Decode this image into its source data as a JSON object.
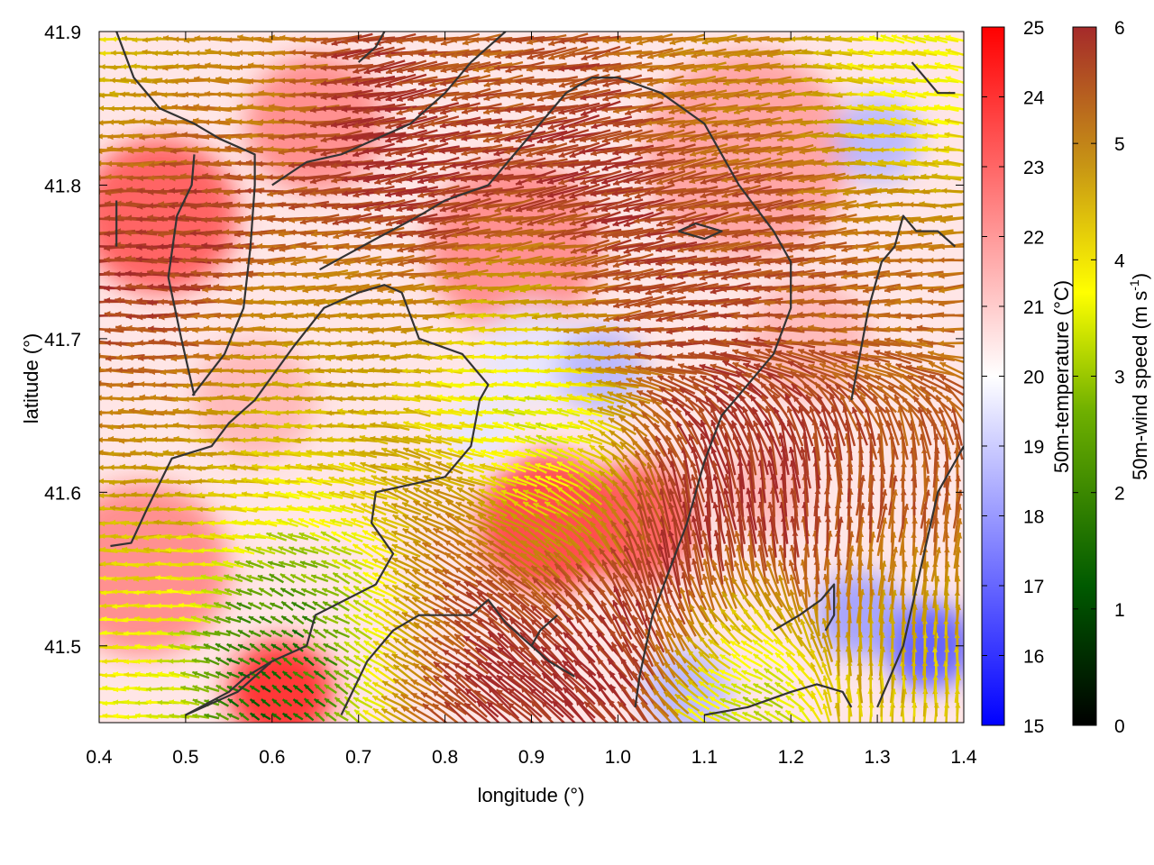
{
  "chart_data": {
    "type": "heatmap",
    "xlabel": "longitude (°)",
    "ylabel": "latitude (°)",
    "xlim": [
      0.4,
      1.4
    ],
    "ylim": [
      41.45,
      41.9
    ],
    "x_ticks": [
      "0.4",
      "0.5",
      "0.6",
      "0.7",
      "0.8",
      "0.9",
      "1.0",
      "1.1",
      "1.2",
      "1.3",
      "1.4"
    ],
    "y_ticks": [
      "41.5",
      "41.6",
      "41.7",
      "41.8",
      "41.9"
    ],
    "x_tick_values": [
      0.4,
      0.5,
      0.6,
      0.7,
      0.8,
      0.9,
      1.0,
      1.1,
      1.2,
      1.3,
      1.4
    ],
    "y_tick_values": [
      41.5,
      41.6,
      41.7,
      41.8,
      41.9
    ],
    "temperature_colorbar": {
      "label": "50m-temperature (°C)",
      "range": [
        15,
        25
      ],
      "ticks": [
        "15",
        "16",
        "17",
        "18",
        "19",
        "20",
        "21",
        "22",
        "23",
        "24",
        "25"
      ],
      "colors": [
        "#0000ff",
        "#ffffff",
        "#ff0000"
      ]
    },
    "wind_colorbar": {
      "label_main": "50m-wind speed (m s",
      "label_sup": "-1",
      "label_end": ")",
      "range": [
        0,
        6
      ],
      "ticks": [
        "0",
        "1",
        "2",
        "3",
        "4",
        "5",
        "6"
      ],
      "colors": [
        "#000000",
        "#006400",
        "#7cb400",
        "#ffff00",
        "#c8a000",
        "#c87814",
        "#a52a2a"
      ]
    },
    "temperature_anomalies": [
      {
        "lon": 0.47,
        "lat": 41.78,
        "t": 23.5,
        "r": 0.09
      },
      {
        "lon": 0.45,
        "lat": 41.55,
        "t": 22.5,
        "r": 0.1
      },
      {
        "lon": 0.61,
        "lat": 41.47,
        "t": 24.5,
        "r": 0.06
      },
      {
        "lon": 0.65,
        "lat": 41.84,
        "t": 22.5,
        "r": 0.08
      },
      {
        "lon": 0.92,
        "lat": 41.58,
        "t": 24.0,
        "r": 0.08
      },
      {
        "lon": 1.02,
        "lat": 41.58,
        "t": 23.5,
        "r": 0.07
      },
      {
        "lon": 0.88,
        "lat": 41.76,
        "t": 22.5,
        "r": 0.1
      },
      {
        "lon": 1.15,
        "lat": 41.82,
        "t": 22.0,
        "r": 0.12
      },
      {
        "lon": 0.9,
        "lat": 41.69,
        "t": 19.5,
        "r": 0.06
      },
      {
        "lon": 0.98,
        "lat": 41.68,
        "t": 18.5,
        "r": 0.05
      },
      {
        "lon": 0.84,
        "lat": 41.64,
        "t": 19.5,
        "r": 0.04
      },
      {
        "lon": 1.3,
        "lat": 41.83,
        "t": 18.5,
        "r": 0.05
      },
      {
        "lon": 1.36,
        "lat": 41.5,
        "t": 16.5,
        "r": 0.05
      },
      {
        "lon": 1.28,
        "lat": 41.52,
        "t": 18.0,
        "r": 0.05
      },
      {
        "lon": 1.08,
        "lat": 41.47,
        "t": 18.5,
        "r": 0.05
      },
      {
        "lon": 1.17,
        "lat": 41.6,
        "t": 21.5,
        "r": 0.05
      },
      {
        "lon": 0.72,
        "lat": 41.58,
        "t": 20.5,
        "r": 0.05
      },
      {
        "lon": 0.58,
        "lat": 41.66,
        "t": 21.5,
        "r": 0.07
      },
      {
        "lon": 1.22,
        "lat": 41.7,
        "t": 21.5,
        "r": 0.07
      },
      {
        "lon": 0.95,
        "lat": 41.89,
        "t": 20.5,
        "r": 0.04
      }
    ],
    "wind_regions": [
      {
        "lon": 0.42,
        "lat": 41.88,
        "u": -1.0,
        "v": 0.0,
        "speed": 2.5,
        "r": 0.07
      },
      {
        "lon": 0.5,
        "lat": 41.82,
        "u": -1.0,
        "v": 0.0,
        "speed": 6.0,
        "r": 0.09
      },
      {
        "lon": 0.45,
        "lat": 41.74,
        "u": -1.0,
        "v": 0.0,
        "speed": 6.0,
        "r": 0.08
      },
      {
        "lon": 0.42,
        "lat": 41.62,
        "u": -1.0,
        "v": 0.0,
        "speed": 4.5,
        "r": 0.08
      },
      {
        "lon": 0.43,
        "lat": 41.52,
        "u": -1.0,
        "v": 0.0,
        "speed": 3.0,
        "r": 0.08
      },
      {
        "lon": 0.6,
        "lat": 41.49,
        "u": -0.4,
        "v": 0.4,
        "speed": 0.8,
        "r": 0.06
      },
      {
        "lon": 0.7,
        "lat": 41.54,
        "u": -0.6,
        "v": 0.3,
        "speed": 1.2,
        "r": 0.06
      },
      {
        "lon": 0.63,
        "lat": 41.65,
        "u": -1.0,
        "v": 0.05,
        "speed": 3.5,
        "r": 0.08
      },
      {
        "lon": 0.85,
        "lat": 41.66,
        "u": -1.0,
        "v": 0.1,
        "speed": 1.8,
        "r": 0.07
      },
      {
        "lon": 0.93,
        "lat": 41.62,
        "u": -0.9,
        "v": 0.3,
        "speed": 1.5,
        "r": 0.06
      },
      {
        "lon": 0.8,
        "lat": 41.55,
        "u": -1.0,
        "v": 0.6,
        "speed": 6.0,
        "r": 0.08
      },
      {
        "lon": 0.92,
        "lat": 41.52,
        "u": -0.8,
        "v": 0.8,
        "speed": 6.0,
        "r": 0.08
      },
      {
        "lon": 1.05,
        "lat": 41.57,
        "u": -0.1,
        "v": 1.0,
        "speed": 6.0,
        "r": 0.07
      },
      {
        "lon": 1.18,
        "lat": 41.6,
        "u": 0.0,
        "v": 1.0,
        "speed": 6.0,
        "r": 0.08
      },
      {
        "lon": 1.3,
        "lat": 41.6,
        "u": 0.2,
        "v": 1.0,
        "speed": 5.5,
        "r": 0.07
      },
      {
        "lon": 1.32,
        "lat": 41.5,
        "u": 0.0,
        "v": 1.0,
        "speed": 3.5,
        "r": 0.06
      },
      {
        "lon": 1.15,
        "lat": 41.49,
        "u": -1.0,
        "v": 0.3,
        "speed": 2.0,
        "r": 0.05
      },
      {
        "lon": 0.75,
        "lat": 41.8,
        "u": -1.0,
        "v": -0.2,
        "speed": 6.0,
        "r": 0.1
      },
      {
        "lon": 0.95,
        "lat": 41.78,
        "u": -1.0,
        "v": -0.25,
        "speed": 6.0,
        "r": 0.1
      },
      {
        "lon": 1.15,
        "lat": 41.75,
        "u": -1.0,
        "v": -0.2,
        "speed": 5.5,
        "r": 0.1
      },
      {
        "lon": 1.3,
        "lat": 41.72,
        "u": -1.0,
        "v": -0.1,
        "speed": 5.0,
        "r": 0.07
      },
      {
        "lon": 0.85,
        "lat": 41.88,
        "u": -1.0,
        "v": -0.1,
        "speed": 5.0,
        "r": 0.06
      },
      {
        "lon": 1.1,
        "lat": 41.88,
        "u": -1.0,
        "v": -0.1,
        "speed": 4.5,
        "r": 0.06
      },
      {
        "lon": 1.32,
        "lat": 41.86,
        "u": -1.0,
        "v": 0.2,
        "speed": 3.0,
        "r": 0.06
      },
      {
        "lon": 0.68,
        "lat": 41.72,
        "u": -1.0,
        "v": -0.1,
        "speed": 4.2,
        "r": 0.05
      },
      {
        "lon": 0.9,
        "lat": 41.71,
        "u": -1.0,
        "v": 0.0,
        "speed": 3.0,
        "r": 0.05
      },
      {
        "lon": 0.58,
        "lat": 41.86,
        "u": -1.0,
        "v": 0.1,
        "speed": 4.0,
        "r": 0.05
      }
    ],
    "contours": [
      [
        [
          0.413,
          41.565
        ],
        [
          0.437,
          41.567
        ],
        [
          0.456,
          41.59
        ],
        [
          0.484,
          41.622
        ],
        [
          0.53,
          41.63
        ],
        [
          0.55,
          41.645
        ],
        [
          0.58,
          41.66
        ],
        [
          0.625,
          41.695
        ],
        [
          0.66,
          41.72
        ],
        [
          0.7,
          41.73
        ],
        [
          0.73,
          41.735
        ],
        [
          0.75,
          41.73
        ],
        [
          0.77,
          41.7
        ],
        [
          0.82,
          41.69
        ],
        [
          0.85,
          41.67
        ],
        [
          0.84,
          41.66
        ],
        [
          0.83,
          41.63
        ],
        [
          0.8,
          41.61
        ],
        [
          0.72,
          41.6
        ],
        [
          0.715,
          41.58
        ],
        [
          0.74,
          41.56
        ],
        [
          0.72,
          41.54
        ],
        [
          0.65,
          41.52
        ],
        [
          0.64,
          41.5
        ],
        [
          0.6,
          41.49
        ],
        [
          0.56,
          41.47
        ],
        [
          0.5,
          41.455
        ]
      ],
      [
        [
          0.508,
          41.663
        ],
        [
          0.545,
          41.69
        ],
        [
          0.567,
          41.72
        ],
        [
          0.575,
          41.76
        ],
        [
          0.58,
          41.8
        ],
        [
          0.58,
          41.82
        ],
        [
          0.54,
          41.83
        ],
        [
          0.51,
          41.84
        ],
        [
          0.47,
          41.85
        ],
        [
          0.44,
          41.87
        ],
        [
          0.42,
          41.9
        ]
      ],
      [
        [
          0.51,
          41.663
        ],
        [
          0.495,
          41.7
        ],
        [
          0.48,
          41.74
        ],
        [
          0.49,
          41.78
        ],
        [
          0.507,
          41.8
        ],
        [
          0.51,
          41.82
        ]
      ],
      [
        [
          0.6,
          41.8
        ],
        [
          0.64,
          41.815
        ],
        [
          0.68,
          41.82
        ],
        [
          0.72,
          41.83
        ],
        [
          0.76,
          41.84
        ],
        [
          0.8,
          41.86
        ],
        [
          0.83,
          41.88
        ],
        [
          0.87,
          41.9
        ]
      ],
      [
        [
          0.655,
          41.745
        ],
        [
          0.72,
          41.765
        ],
        [
          0.77,
          41.78
        ],
        [
          0.8,
          41.79
        ],
        [
          0.85,
          41.8
        ],
        [
          0.88,
          41.82
        ],
        [
          0.91,
          41.84
        ],
        [
          0.94,
          41.86
        ],
        [
          0.97,
          41.87
        ],
        [
          1.0,
          41.87
        ],
        [
          1.05,
          41.86
        ],
        [
          1.1,
          41.84
        ],
        [
          1.14,
          41.8
        ],
        [
          1.18,
          41.77
        ],
        [
          1.2,
          41.75
        ],
        [
          1.2,
          41.72
        ],
        [
          1.18,
          41.69
        ],
        [
          1.15,
          41.67
        ],
        [
          1.12,
          41.65
        ],
        [
          1.1,
          41.62
        ],
        [
          1.08,
          41.58
        ],
        [
          1.06,
          41.55
        ],
        [
          1.04,
          41.52
        ],
        [
          1.025,
          41.48
        ],
        [
          1.02,
          41.46
        ]
      ],
      [
        [
          0.5,
          41.455
        ],
        [
          0.55,
          41.47
        ],
        [
          0.57,
          41.48
        ],
        [
          0.6,
          41.49
        ]
      ],
      [
        [
          0.68,
          41.455
        ],
        [
          0.71,
          41.49
        ],
        [
          0.74,
          41.51
        ],
        [
          0.77,
          41.52
        ],
        [
          0.8,
          41.52
        ],
        [
          0.83,
          41.52
        ],
        [
          0.85,
          41.53
        ],
        [
          0.87,
          41.515
        ],
        [
          0.9,
          41.5
        ],
        [
          0.92,
          41.49
        ],
        [
          0.95,
          41.48
        ]
      ],
      [
        [
          0.9,
          41.5
        ],
        [
          0.91,
          41.51
        ],
        [
          0.93,
          41.52
        ]
      ],
      [
        [
          1.1,
          41.455
        ],
        [
          1.15,
          41.46
        ],
        [
          1.2,
          41.47
        ],
        [
          1.23,
          41.475
        ],
        [
          1.26,
          41.47
        ],
        [
          1.27,
          41.46
        ]
      ],
      [
        [
          1.18,
          41.51
        ],
        [
          1.21,
          41.52
        ],
        [
          1.235,
          41.53
        ],
        [
          1.25,
          41.54
        ],
        [
          1.25,
          41.52
        ],
        [
          1.24,
          41.51
        ]
      ],
      [
        [
          1.27,
          41.66
        ],
        [
          1.29,
          41.72
        ],
        [
          1.305,
          41.75
        ],
        [
          1.32,
          41.76
        ],
        [
          1.33,
          41.78
        ],
        [
          1.345,
          41.77
        ],
        [
          1.37,
          41.77
        ],
        [
          1.39,
          41.76
        ]
      ],
      [
        [
          1.3,
          41.46
        ],
        [
          1.33,
          41.5
        ],
        [
          1.35,
          41.55
        ],
        [
          1.37,
          41.6
        ],
        [
          1.39,
          41.62
        ],
        [
          1.4,
          41.63
        ]
      ],
      [
        [
          0.42,
          41.79
        ],
        [
          0.42,
          41.76
        ]
      ],
      [
        [
          1.07,
          41.77
        ],
        [
          1.1,
          41.765
        ],
        [
          1.12,
          41.77
        ],
        [
          1.09,
          41.775
        ],
        [
          1.07,
          41.77
        ]
      ],
      [
        [
          1.34,
          41.88
        ],
        [
          1.37,
          41.86
        ],
        [
          1.39,
          41.86
        ]
      ],
      [
        [
          0.7,
          41.88
        ],
        [
          0.72,
          41.89
        ],
        [
          0.73,
          41.9
        ]
      ]
    ]
  }
}
